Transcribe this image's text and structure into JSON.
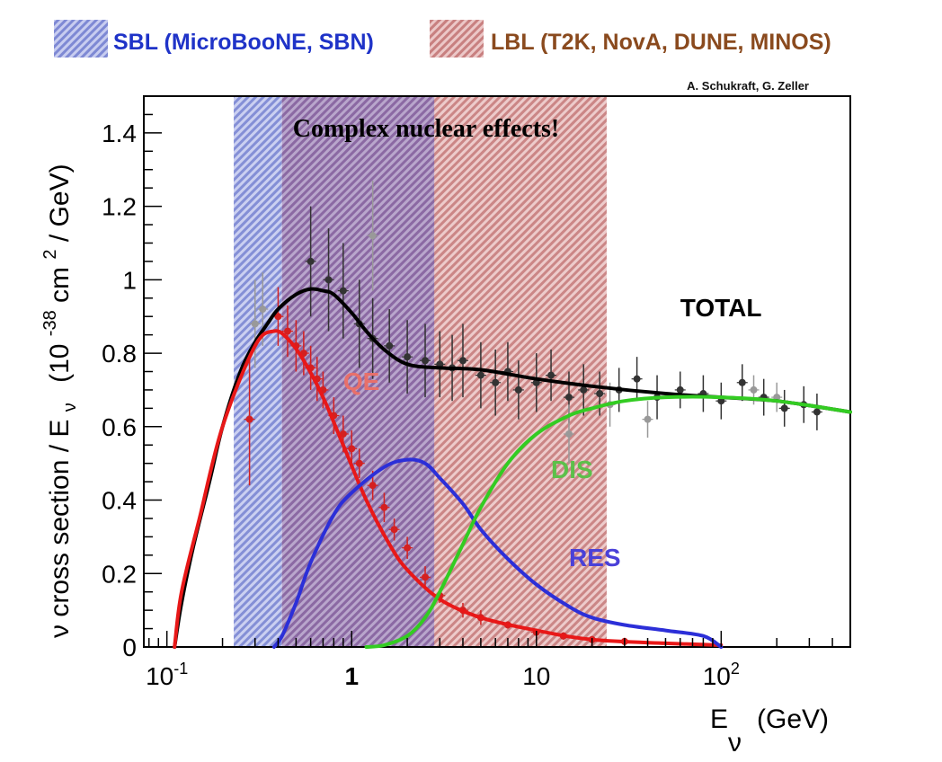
{
  "chart_data": {
    "type": "line",
    "x_scale": "log",
    "xlim": [
      0.075,
      500
    ],
    "ylim": [
      0,
      1.5
    ],
    "grid": false,
    "legend_placement": "top",
    "credit": "A. Schukraft, G. Zeller",
    "annotation": "Complex nuclear effects!",
    "ylabel": "ν cross section / Eν (10⁻³⁸ cm² / GeV)",
    "ylabel_parts": {
      "main": "ν cross section / E",
      "main_sub": "ν",
      "unit_open": "(10",
      "unit_exp": "-38",
      "unit_mid": " cm",
      "unit_exp2": "2",
      "unit_close": " / GeV)"
    },
    "xlabel_parts": {
      "main": "E",
      "sub": "ν",
      "unit": "(GeV)"
    },
    "x_ticks": [
      {
        "value": 0.1,
        "base": "10",
        "exp": "-1",
        "bold": false
      },
      {
        "value": 1,
        "text": "1",
        "bold": true
      },
      {
        "value": 10,
        "text": "10",
        "bold": false
      },
      {
        "value": 100,
        "base": "10",
        "exp": "2",
        "bold": false
      }
    ],
    "y_ticks": [
      {
        "value": 0,
        "text": "0"
      },
      {
        "value": 0.2,
        "text": "0.2"
      },
      {
        "value": 0.4,
        "text": "0.4"
      },
      {
        "value": 0.6,
        "text": "0.6"
      },
      {
        "value": 0.8,
        "text": "0.8"
      },
      {
        "value": 1.0,
        "text": "1"
      },
      {
        "value": 1.2,
        "text": "1.2"
      },
      {
        "value": 1.4,
        "text": "1.4"
      }
    ],
    "bands": [
      {
        "name": "SBL (MicroBooNE, SBN)",
        "xmin": 0.23,
        "xmax": 0.42,
        "color": "#3347b8"
      },
      {
        "name": "LBL (T2K, NovA, DUNE, MINOS)",
        "xmin": 0.42,
        "xmax": 24,
        "color": "#b85050"
      }
    ],
    "overlap_band": {
      "xmin": 0.42,
      "xmax": 2.8,
      "color": "#6a4fa0"
    },
    "legend_colors": {
      "SBL": "#1f33c8",
      "LBL": "#8a4a1e"
    },
    "series": [
      {
        "name": "TOTAL",
        "label_color": "#000000",
        "color": "#000000",
        "x": [
          0.11,
          0.12,
          0.14,
          0.17,
          0.2,
          0.25,
          0.3,
          0.35,
          0.4,
          0.5,
          0.6,
          0.7,
          0.8,
          1.0,
          1.2,
          1.5,
          2.0,
          3.0,
          5.0,
          10,
          20,
          50,
          100,
          200,
          500
        ],
        "y": [
          0,
          0.12,
          0.28,
          0.45,
          0.6,
          0.75,
          0.83,
          0.88,
          0.92,
          0.96,
          0.975,
          0.97,
          0.96,
          0.91,
          0.86,
          0.81,
          0.77,
          0.76,
          0.755,
          0.73,
          0.71,
          0.69,
          0.68,
          0.67,
          0.64
        ]
      },
      {
        "name": "QE",
        "label_color": "#e8706a",
        "color": "#e81818",
        "x": [
          0.11,
          0.12,
          0.15,
          0.2,
          0.3,
          0.38,
          0.45,
          0.55,
          0.7,
          0.9,
          1.2,
          1.6,
          2.0,
          3.0,
          5.0,
          10,
          20,
          50,
          100
        ],
        "y": [
          0,
          0.15,
          0.35,
          0.6,
          0.82,
          0.86,
          0.84,
          0.78,
          0.68,
          0.55,
          0.4,
          0.28,
          0.21,
          0.13,
          0.08,
          0.045,
          0.02,
          0.01,
          0.005
        ]
      },
      {
        "name": "RES",
        "label_color": "#4a40d8",
        "color": "#2c2fd8",
        "x": [
          0.38,
          0.42,
          0.5,
          0.6,
          0.8,
          1.0,
          1.5,
          2.0,
          2.5,
          3.0,
          4.0,
          5.0,
          7.0,
          10,
          15,
          20,
          30,
          50,
          80,
          100
        ],
        "y": [
          0,
          0.03,
          0.12,
          0.23,
          0.36,
          0.42,
          0.49,
          0.51,
          0.5,
          0.46,
          0.39,
          0.32,
          0.24,
          0.17,
          0.11,
          0.08,
          0.06,
          0.045,
          0.03,
          0
        ]
      },
      {
        "name": "DIS",
        "label_color": "#5cc04a",
        "color": "#33cc22",
        "x": [
          1.2,
          1.5,
          2.0,
          2.5,
          3.0,
          4.0,
          5.0,
          7.0,
          10,
          15,
          20,
          30,
          50,
          100,
          200,
          500
        ],
        "y": [
          0,
          0.005,
          0.03,
          0.08,
          0.15,
          0.28,
          0.38,
          0.5,
          0.58,
          0.63,
          0.65,
          0.67,
          0.68,
          0.68,
          0.67,
          0.64
        ]
      }
    ],
    "label_positions": {
      "TOTAL": {
        "x": 60,
        "y": 0.9
      },
      "QE": {
        "x": 0.9,
        "y": 0.7
      },
      "DIS": {
        "x": 12,
        "y": 0.46
      },
      "RES": {
        "x": 15,
        "y": 0.22
      }
    },
    "data_points": [
      {
        "name": "QE measurements",
        "color": "#d42020",
        "x": [
          0.4,
          0.45,
          0.5,
          0.55,
          0.6,
          0.65,
          0.7,
          0.8,
          0.9,
          1.0,
          1.1,
          1.3,
          1.5,
          1.7,
          2.0,
          2.5,
          3.0,
          4.0,
          5.0,
          7.0,
          10,
          14,
          20,
          30
        ],
        "y": [
          0.9,
          0.86,
          0.82,
          0.8,
          0.76,
          0.73,
          0.7,
          0.63,
          0.58,
          0.54,
          0.5,
          0.44,
          0.38,
          0.32,
          0.27,
          0.19,
          0.14,
          0.1,
          0.08,
          0.06,
          0.04,
          0.03,
          0.02,
          0.015
        ],
        "err": [
          0.08,
          0.07,
          0.07,
          0.06,
          0.06,
          0.06,
          0.05,
          0.05,
          0.05,
          0.05,
          0.04,
          0.04,
          0.04,
          0.03,
          0.03,
          0.03,
          0.02,
          0.02,
          0.02,
          0.01,
          0.01,
          0.01,
          0.01,
          0.01
        ]
      },
      {
        "name": "QE low-energy point",
        "color": "#d42020",
        "x": [
          0.28
        ],
        "y": [
          0.62
        ],
        "err": [
          0.18
        ]
      },
      {
        "name": "Total measurements",
        "color": "#333333",
        "x": [
          0.6,
          0.75,
          0.9,
          1.1,
          1.3,
          1.6,
          2.0,
          2.5,
          3.0,
          3.5,
          4.0,
          5.0,
          6.0,
          7.0,
          8.0,
          10,
          12,
          15,
          18,
          22,
          28,
          35,
          45,
          60,
          80,
          100,
          130,
          170,
          220,
          280,
          330
        ],
        "y": [
          1.05,
          1.0,
          0.97,
          0.88,
          0.84,
          0.82,
          0.79,
          0.78,
          0.77,
          0.76,
          0.78,
          0.74,
          0.72,
          0.75,
          0.7,
          0.72,
          0.74,
          0.68,
          0.7,
          0.69,
          0.7,
          0.73,
          0.68,
          0.7,
          0.69,
          0.67,
          0.72,
          0.68,
          0.65,
          0.66,
          0.64
        ],
        "err": [
          0.15,
          0.14,
          0.13,
          0.12,
          0.11,
          0.1,
          0.1,
          0.1,
          0.09,
          0.09,
          0.1,
          0.09,
          0.09,
          0.08,
          0.08,
          0.08,
          0.07,
          0.07,
          0.07,
          0.06,
          0.06,
          0.06,
          0.06,
          0.05,
          0.05,
          0.05,
          0.05,
          0.05,
          0.05,
          0.05,
          0.05
        ]
      },
      {
        "name": "Gray measurements",
        "color": "#999999",
        "x": [
          0.3,
          0.33,
          1.3,
          15,
          25,
          40,
          150,
          200
        ],
        "y": [
          0.88,
          0.92,
          1.12,
          0.58,
          0.66,
          0.62,
          0.7,
          0.68
        ],
        "err": [
          0.12,
          0.1,
          0.15,
          0.08,
          0.06,
          0.05,
          0.04,
          0.04
        ]
      }
    ]
  }
}
